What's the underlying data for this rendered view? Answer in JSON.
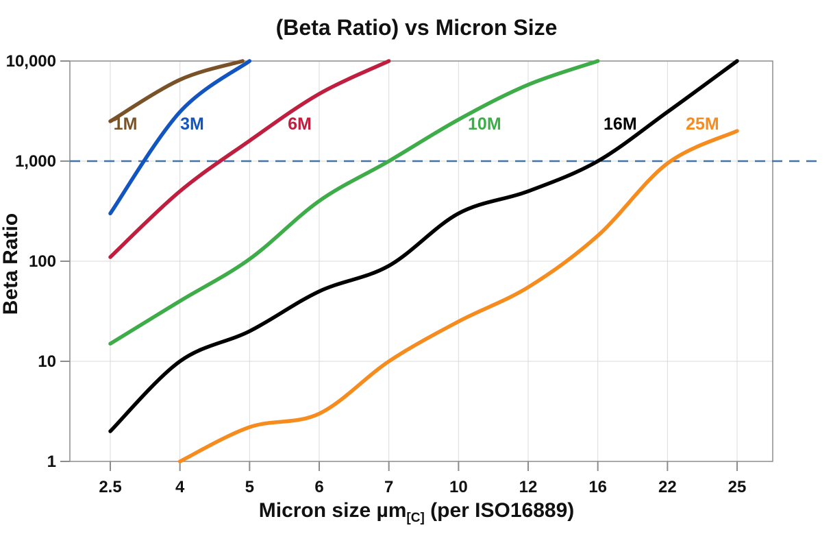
{
  "title": "(Beta Ratio) vs Micron Size",
  "chart_data": {
    "type": "line",
    "title": "(Beta Ratio) vs Micron Size",
    "ylabel": "Beta Ratio",
    "xlabel_main": "Micron size µm",
    "xlabel_sub": "[C]",
    "xlabel_tail": " (per ISO16889)",
    "x_scale": "category",
    "y_scale": "log",
    "ylim": [
      1,
      10000
    ],
    "x_tick_values": [
      2.5,
      4,
      5,
      6,
      7,
      10,
      12,
      16,
      22,
      25
    ],
    "x_tick_labels": [
      "2.5",
      "4",
      "5",
      "6",
      "7",
      "10",
      "12",
      "16",
      "22",
      "25"
    ],
    "y_tick_values": [
      1,
      10,
      100,
      1000,
      10000
    ],
    "y_tick_labels": [
      "1",
      "10",
      "100",
      "1,000",
      "10,000"
    ],
    "grid": true,
    "legend_position": "inline-labels",
    "reference_line": {
      "y": 1000,
      "style": "dashed",
      "color": "#4473A5"
    },
    "axis_color": "#8C8C8C",
    "grid_color": "#DADADA",
    "series": [
      {
        "name": "1M",
        "color": "#7A5227",
        "label_frac": [
          0.079,
          0.156
        ],
        "points": [
          [
            2.5,
            2500
          ],
          [
            4,
            6500
          ],
          [
            4.9,
            10000
          ]
        ]
      },
      {
        "name": "3M",
        "color": "#1355C0",
        "label_frac": [
          0.174,
          0.156
        ],
        "points": [
          [
            2.5,
            300
          ],
          [
            4,
            3100
          ],
          [
            5,
            10000
          ]
        ]
      },
      {
        "name": "6M",
        "color": "#C01E3F",
        "label_frac": [
          0.327,
          0.156
        ],
        "points": [
          [
            2.5,
            110
          ],
          [
            4,
            500
          ],
          [
            5,
            1600
          ],
          [
            6,
            4700
          ],
          [
            7,
            10000
          ]
        ]
      },
      {
        "name": "10M",
        "color": "#3EAC49",
        "label_frac": [
          0.59,
          0.156
        ],
        "points": [
          [
            2.5,
            15
          ],
          [
            4,
            40
          ],
          [
            5,
            105
          ],
          [
            6,
            400
          ],
          [
            7,
            1000
          ],
          [
            10,
            2600
          ],
          [
            12,
            5800
          ],
          [
            16,
            10000
          ]
        ]
      },
      {
        "name": "16M",
        "color": "#000000",
        "label_frac": [
          0.783,
          0.156
        ],
        "points": [
          [
            2.5,
            2
          ],
          [
            4,
            10
          ],
          [
            5,
            20
          ],
          [
            6,
            50
          ],
          [
            7,
            90
          ],
          [
            10,
            300
          ],
          [
            12,
            500
          ],
          [
            16,
            1000
          ],
          [
            22,
            3100
          ],
          [
            25,
            10000
          ]
        ]
      },
      {
        "name": "25M",
        "color": "#F68B1E",
        "label_frac": [
          0.9,
          0.156
        ],
        "points": [
          [
            4,
            1
          ],
          [
            5,
            2.2
          ],
          [
            6,
            3
          ],
          [
            7,
            10
          ],
          [
            10,
            25
          ],
          [
            12,
            55
          ],
          [
            16,
            180
          ],
          [
            22,
            950
          ],
          [
            25,
            2000
          ]
        ]
      }
    ]
  }
}
